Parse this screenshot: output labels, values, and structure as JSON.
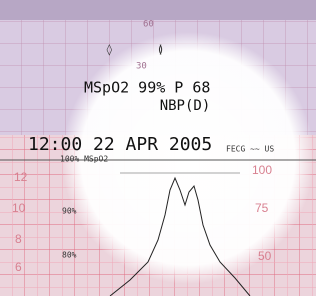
{
  "strip": {
    "upper_scale": [
      "60",
      "30"
    ],
    "readout": {
      "line1": "MSpO2 99% P 68",
      "line2": "NBP(D)"
    },
    "timestamp": "12:00 22 APR 2005",
    "channels": "FECG ~~ US",
    "spo2_scale": [
      "100% MSpO2",
      "90%",
      "80%"
    ],
    "fhr_scale": [
      "100",
      "75",
      "50"
    ],
    "uc_scale": [
      "12",
      "10",
      "8",
      "6"
    ]
  }
}
